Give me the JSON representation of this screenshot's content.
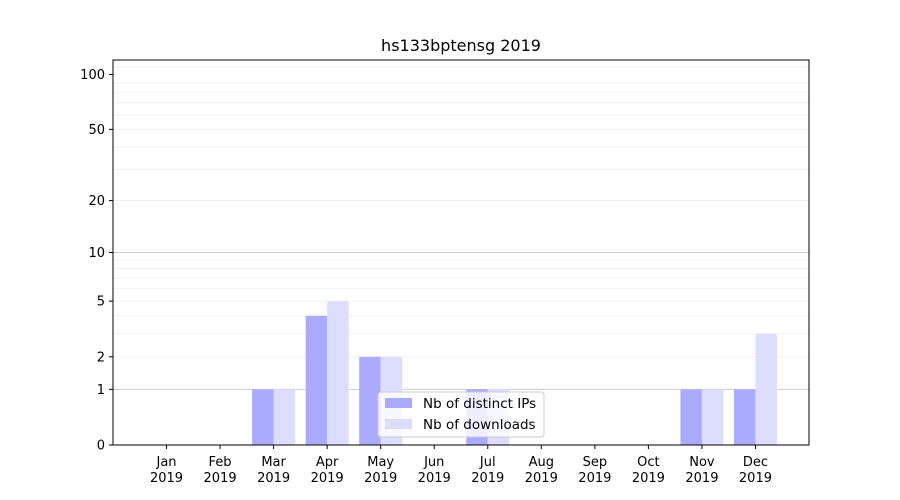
{
  "chart_data": {
    "type": "bar",
    "title": "hs133bptensg 2019",
    "xlabel": "",
    "ylabel": "",
    "yscale": "symlog",
    "ylim": [
      0,
      120
    ],
    "yticks": [
      0,
      1,
      2,
      5,
      10,
      20,
      50,
      100
    ],
    "grid": true,
    "legend_position": "bottom-center",
    "categories": [
      [
        "Jan",
        "2019"
      ],
      [
        "Feb",
        "2019"
      ],
      [
        "Mar",
        "2019"
      ],
      [
        "Apr",
        "2019"
      ],
      [
        "May",
        "2019"
      ],
      [
        "Jun",
        "2019"
      ],
      [
        "Jul",
        "2019"
      ],
      [
        "Aug",
        "2019"
      ],
      [
        "Sep",
        "2019"
      ],
      [
        "Oct",
        "2019"
      ],
      [
        "Nov",
        "2019"
      ],
      [
        "Dec",
        "2019"
      ]
    ],
    "series": [
      {
        "name": "Nb of distinct IPs",
        "color": "#aaaaff",
        "values": [
          0,
          0,
          1,
          4,
          2,
          0,
          1,
          0,
          0,
          0,
          1,
          1
        ]
      },
      {
        "name": "Nb of downloads",
        "color": "#ddddff",
        "values": [
          0,
          0,
          1,
          5,
          2,
          0,
          1,
          0,
          0,
          0,
          1,
          3
        ]
      }
    ]
  }
}
